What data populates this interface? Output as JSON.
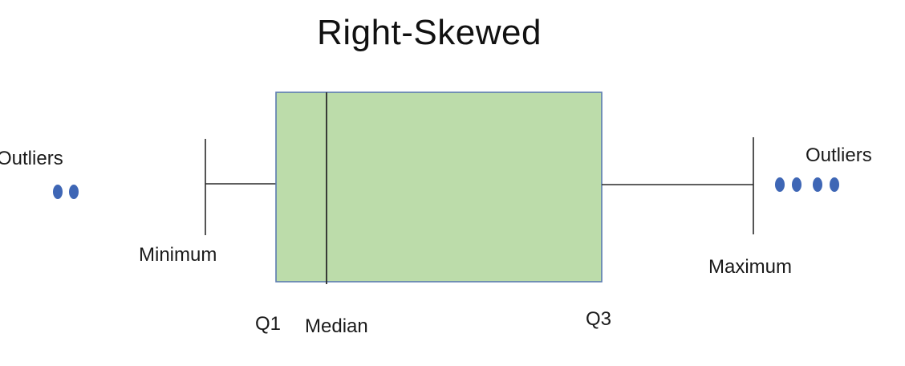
{
  "title": "Right-Skewed",
  "labels": {
    "outliers_left": "Outliers",
    "outliers_right": "Outliers",
    "minimum": "Minimum",
    "maximum": "Maximum",
    "q1": "Q1",
    "median": "Median",
    "q3": "Q3"
  },
  "outlier_counts": {
    "left": 2,
    "right": 4
  },
  "colors": {
    "box_fill": "#bcdcaa",
    "box_stroke": "#5b7bb0",
    "median_line": "#2a2a2a",
    "whisker": "#2a2a2a",
    "outlier_dot": "#3e66b5"
  }
}
